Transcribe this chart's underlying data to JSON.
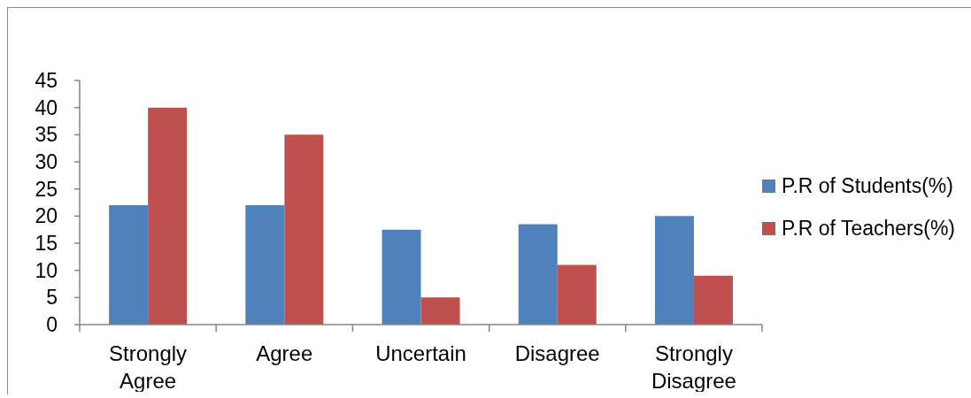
{
  "chart_data": {
    "type": "bar",
    "categories": [
      "Strongly Agree",
      "Agree",
      "Uncertain",
      "Disagree",
      "Strongly Disagree"
    ],
    "series": [
      {
        "name": "P.R of Students(%)",
        "color": "#4f81bd",
        "values": [
          22,
          22,
          17.5,
          18.5,
          20
        ]
      },
      {
        "name": "P.R of Teachers(%)",
        "color": "#c0504d",
        "values": [
          40,
          35,
          5,
          11,
          9
        ]
      }
    ],
    "ylim": [
      0,
      45
    ],
    "yticks": [
      0,
      5,
      10,
      15,
      20,
      25,
      30,
      35,
      40,
      45
    ],
    "grid": false,
    "legend": "right"
  }
}
